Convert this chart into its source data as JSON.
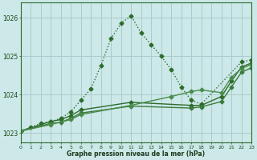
{
  "bg_color": "#cce8e8",
  "grid_color": "#aacccc",
  "xlabel": "Graphe pression niveau de la mer (hPa)",
  "xlim": [
    0,
    23
  ],
  "ylim": [
    1022.75,
    1026.4
  ],
  "yticks": [
    1023,
    1024,
    1025,
    1026
  ],
  "xticks": [
    0,
    1,
    2,
    3,
    4,
    5,
    6,
    7,
    8,
    9,
    10,
    11,
    12,
    13,
    14,
    15,
    16,
    17,
    18,
    19,
    20,
    21,
    22,
    23
  ],
  "series": [
    {
      "x": [
        0,
        1,
        2,
        3,
        4,
        5,
        6,
        7,
        8,
        9,
        10,
        11,
        12,
        13,
        14,
        15,
        16,
        17,
        18,
        22,
        23
      ],
      "y": [
        1023.05,
        1023.15,
        1023.25,
        1023.3,
        1023.38,
        1023.55,
        1023.85,
        1024.15,
        1024.75,
        1025.45,
        1025.85,
        1026.05,
        1025.6,
        1025.3,
        1025.0,
        1024.65,
        1024.2,
        1023.85,
        1023.75,
        1024.85,
        1024.9
      ],
      "style": "dotted",
      "lw": 1.0,
      "color": "#2d6b2d",
      "marker": "D",
      "ms": 2.5
    },
    {
      "x": [
        0,
        3,
        4,
        5,
        6,
        11,
        17,
        18,
        20,
        21,
        22,
        23
      ],
      "y": [
        1023.05,
        1023.3,
        1023.35,
        1023.45,
        1023.6,
        1023.8,
        1023.72,
        1023.72,
        1023.95,
        1024.35,
        1024.72,
        1024.82
      ],
      "style": "solid",
      "lw": 1.0,
      "color": "#2d6b2d",
      "marker": "D",
      "ms": 2.5
    },
    {
      "x": [
        0,
        3,
        4,
        5,
        6,
        11,
        17,
        18,
        20,
        21,
        22,
        23
      ],
      "y": [
        1023.05,
        1023.25,
        1023.28,
        1023.38,
        1023.52,
        1023.7,
        1023.65,
        1023.68,
        1023.82,
        1024.2,
        1024.58,
        1024.7
      ],
      "style": "solid",
      "lw": 1.0,
      "color": "#3d7a3d",
      "marker": "D",
      "ms": 2.5
    },
    {
      "x": [
        0,
        3,
        5,
        6,
        11,
        15,
        17,
        18,
        20,
        21,
        22,
        23
      ],
      "y": [
        1023.05,
        1023.22,
        1023.35,
        1023.48,
        1023.72,
        1023.95,
        1024.08,
        1024.12,
        1024.05,
        1024.45,
        1024.68,
        1024.78
      ],
      "style": "solid",
      "lw": 1.0,
      "color": "#4a8c4a",
      "marker": "D",
      "ms": 2.5
    }
  ]
}
